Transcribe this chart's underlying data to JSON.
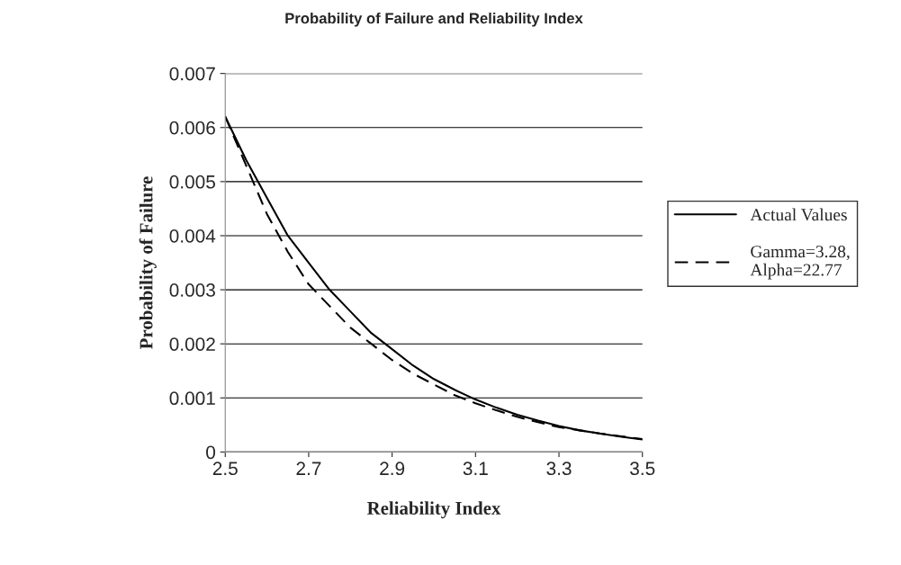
{
  "chart_data": {
    "type": "line",
    "title": "Probability of Failure and Reliability Index",
    "xlabel": "Reliability Index",
    "ylabel": "Probability of Failure",
    "series": [
      {
        "name": "Actual Values",
        "color": "#000000",
        "line_style": "solid",
        "x": [
          2.5,
          2.55,
          2.6,
          2.65,
          2.7,
          2.75,
          2.8,
          2.85,
          2.9,
          2.95,
          3.0,
          3.05,
          3.1,
          3.15,
          3.2,
          3.25,
          3.3,
          3.35,
          3.4,
          3.45,
          3.5
        ],
        "values": [
          0.0062,
          0.0054,
          0.0047,
          0.004,
          0.0035,
          0.003,
          0.0026,
          0.0022,
          0.0019,
          0.0016,
          0.00135,
          0.00115,
          0.00097,
          0.00082,
          0.00069,
          0.00058,
          0.00048,
          0.0004,
          0.00034,
          0.00028,
          0.00023
        ]
      },
      {
        "name": "Gamma=3.28,\nAlpha=22.77",
        "color": "#000000",
        "line_style": "dashed",
        "x": [
          2.5,
          2.55,
          2.6,
          2.65,
          2.7,
          2.75,
          2.8,
          2.85,
          2.9,
          2.95,
          3.0,
          3.05,
          3.1,
          3.15,
          3.2,
          3.25,
          3.3,
          3.35,
          3.4,
          3.45,
          3.5
        ],
        "values": [
          0.0062,
          0.0053,
          0.0044,
          0.0037,
          0.0031,
          0.0027,
          0.0023,
          0.002,
          0.0017,
          0.00145,
          0.00125,
          0.00105,
          0.0009,
          0.00077,
          0.00065,
          0.00055,
          0.00046,
          0.0004,
          0.00034,
          0.00029,
          0.00024
        ]
      }
    ],
    "xlim": [
      2.5,
      3.5
    ],
    "xticks": [
      2.5,
      2.7,
      2.9,
      3.1,
      3.3,
      3.5
    ],
    "ylim": [
      0,
      0.007
    ],
    "yticks": [
      0,
      0.001,
      0.002,
      0.003,
      0.004,
      0.005,
      0.006,
      0.007
    ],
    "grid": "y",
    "legend": "right",
    "marker": "none"
  }
}
